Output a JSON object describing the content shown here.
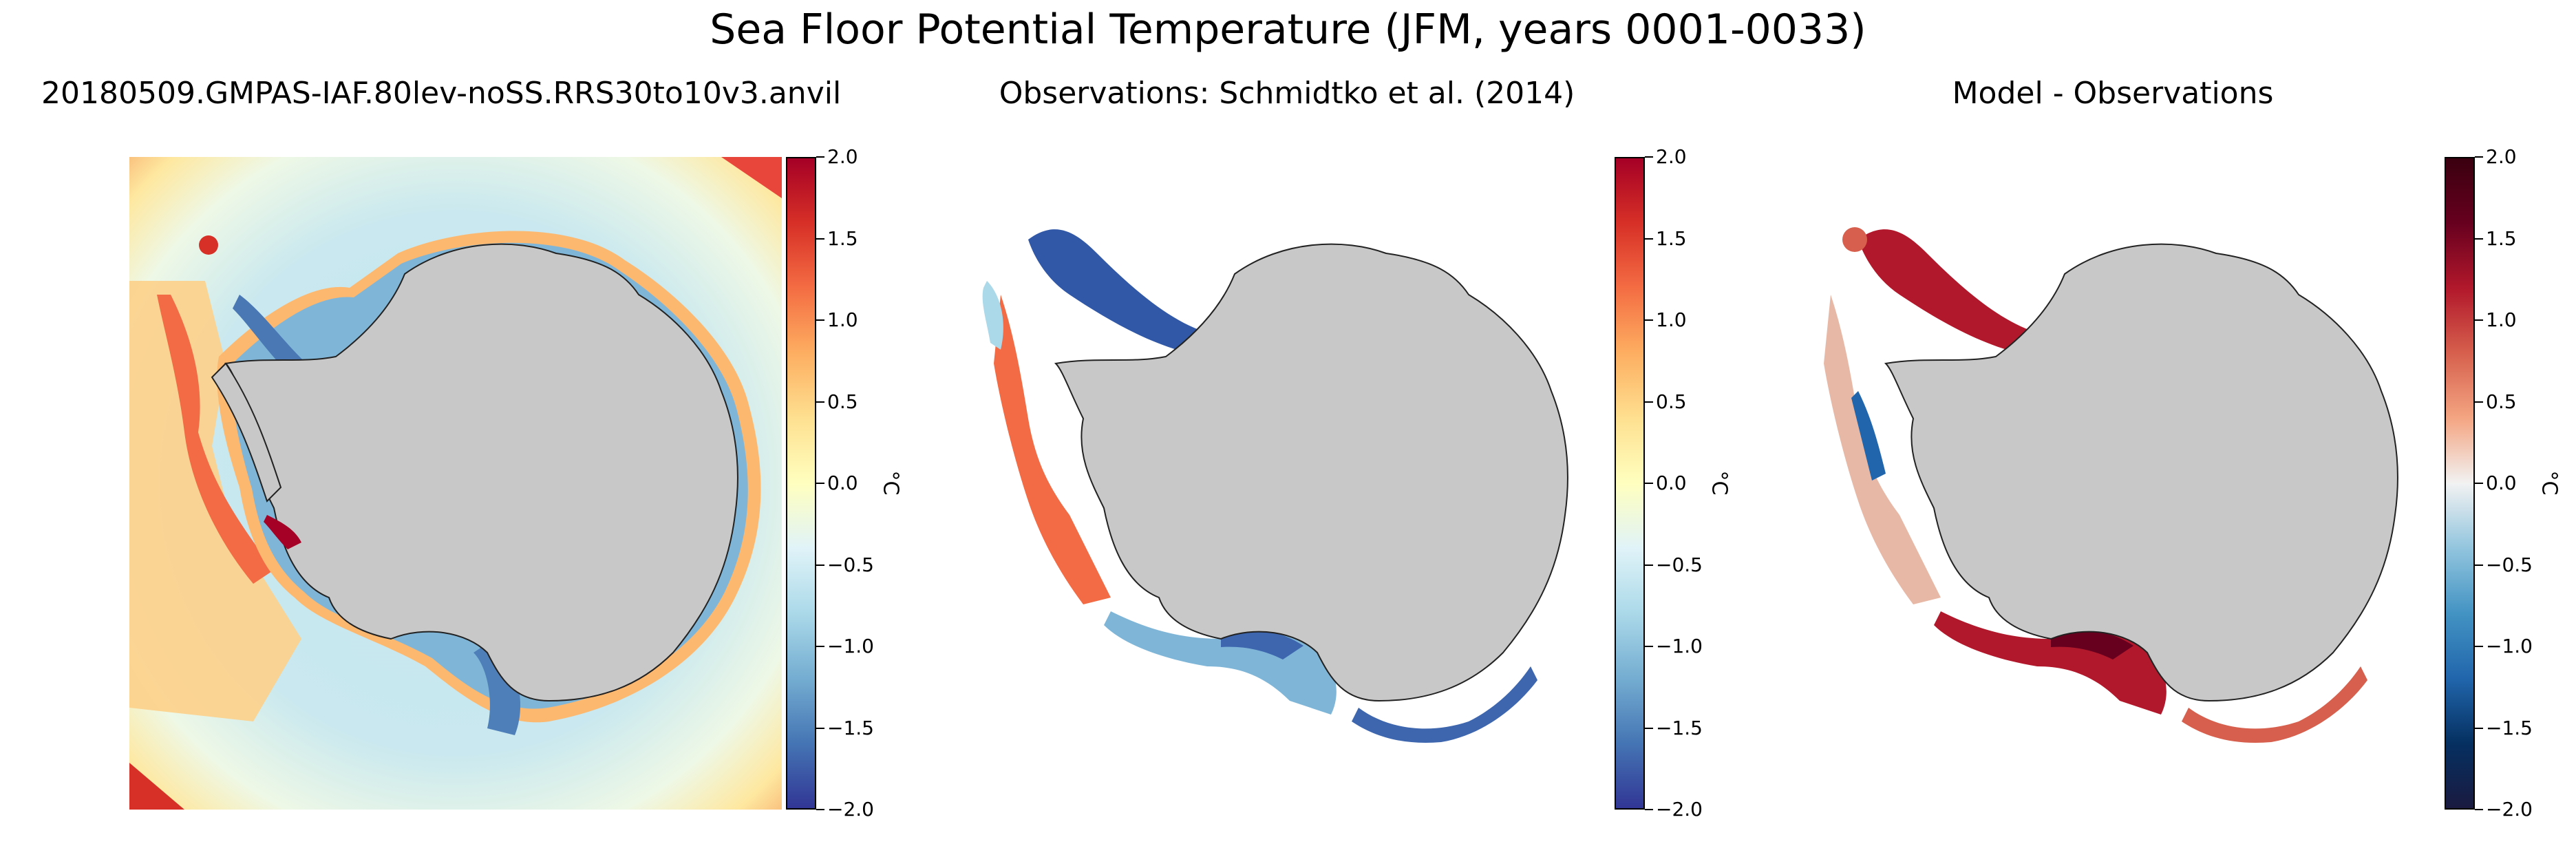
{
  "title": "Sea Floor Potential Temperature (JFM, years 0001-0033)",
  "panels": [
    {
      "subtitle": "20180509.GMPAS-IAF.80lev-noSS.RRS30to10v3.anvil",
      "colormap": "RdYlBu_r",
      "units": "°C"
    },
    {
      "subtitle": "Observations: Schmidtko et al. (2014)",
      "colormap": "RdYlBu_r",
      "units": "°C"
    },
    {
      "subtitle": "Model - Observations",
      "colormap": "RdBu_r",
      "units": "°C"
    }
  ],
  "colorbar": {
    "range": [
      -2.0,
      2.0
    ],
    "ticks": [
      "2.0",
      "1.5",
      "1.0",
      "0.5",
      "0.0",
      "−0.5",
      "−1.0",
      "−1.5",
      "−2.0"
    ]
  },
  "colors": {
    "land": "#c8c8c8",
    "rdylbu": [
      "#313695",
      "#4575b4",
      "#74add1",
      "#abd9e9",
      "#e0f3f8",
      "#ffffbf",
      "#fee090",
      "#fdae61",
      "#f46d43",
      "#d73027",
      "#a50026"
    ],
    "rdbu": [
      "#1a1a40",
      "#053061",
      "#2166ac",
      "#4393c3",
      "#92c5de",
      "#f2f2f2",
      "#f4a582",
      "#d6604d",
      "#b2182b",
      "#67001f",
      "#3a0010"
    ]
  }
}
